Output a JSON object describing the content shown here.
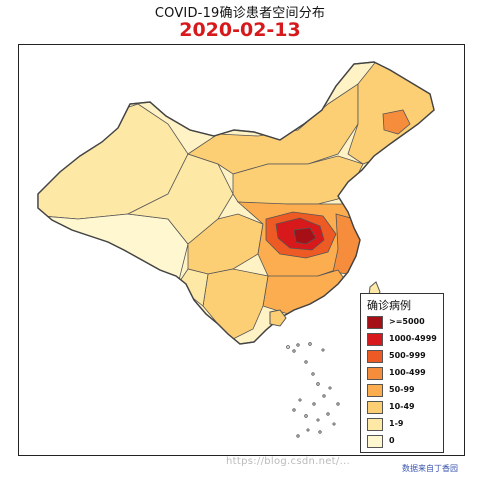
{
  "title": "COVID-19确诊患者空间分布",
  "date": "2020-02-13",
  "legend": {
    "title": "确诊病例",
    "items": [
      {
        "label": ">=5000",
        "color": "#a50f15"
      },
      {
        "label": "1000-4999",
        "color": "#d7191c"
      },
      {
        "label": "500-999",
        "color": "#ee5a24"
      },
      {
        "label": "100-499",
        "color": "#f68d3d"
      },
      {
        "label": "50-99",
        "color": "#fbad50"
      },
      {
        "label": "10-49",
        "color": "#fdcf75"
      },
      {
        "label": "1-9",
        "color": "#fee8a6"
      },
      {
        "label": "0",
        "color": "#fff7cf"
      }
    ]
  },
  "watermark": "https://blog.csdn.net/...",
  "source": "数据来自丁香园",
  "colors": {
    "border": "#555555",
    "background": "#ffffff"
  },
  "map_regions": [
    {
      "name": "hubei-core",
      "cls": 0
    },
    {
      "name": "hubei-ring",
      "cls": 1
    },
    {
      "name": "central-belt",
      "cls": 2
    },
    {
      "name": "heilongjiang-hotspot",
      "cls": 3
    },
    {
      "name": "east-coast",
      "cls": 4
    },
    {
      "name": "southeast",
      "cls": 5
    },
    {
      "name": "northwest",
      "cls": 6
    },
    {
      "name": "tibet",
      "cls": 7
    }
  ]
}
